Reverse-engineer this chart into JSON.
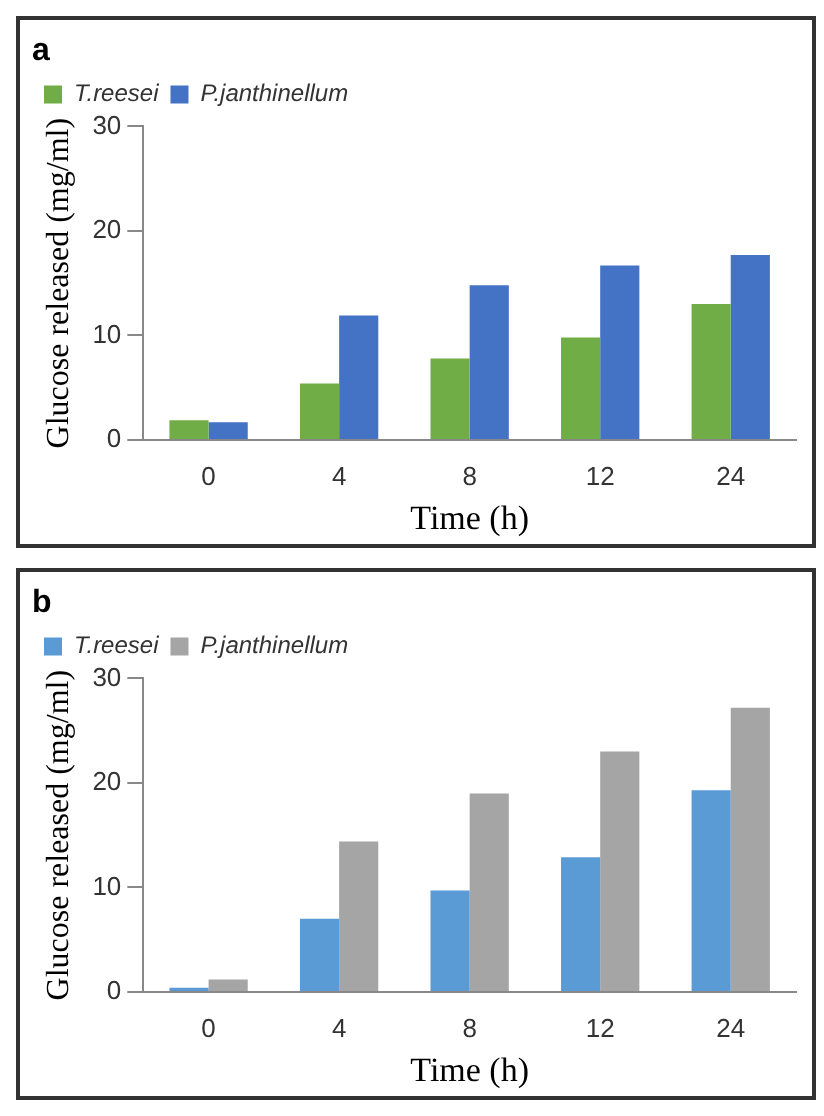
{
  "chart_data": [
    {
      "type": "bar",
      "title": "a",
      "xlabel": "Time (h)",
      "ylabel": "Glucose released (mg/ml)",
      "categories": [
        "0",
        "4",
        "8",
        "12",
        "24"
      ],
      "series": [
        {
          "name": "T.reesei",
          "color": "#70ad47",
          "values": [
            1.9,
            5.4,
            7.8,
            9.8,
            13.0
          ]
        },
        {
          "name": "P.janthinellum",
          "color": "#4472c4",
          "values": [
            1.7,
            11.9,
            14.8,
            16.7,
            17.7
          ]
        }
      ],
      "ylim": [
        0,
        30
      ],
      "yticks": [
        0,
        10,
        20,
        30
      ],
      "grid": false,
      "legend": "top left"
    },
    {
      "type": "bar",
      "title": "b",
      "xlabel": "Time (h)",
      "ylabel": "Glucose released (mg/ml)",
      "categories": [
        "0",
        "4",
        "8",
        "12",
        "24"
      ],
      "series": [
        {
          "name": "T.reesei",
          "color": "#5b9bd5",
          "values": [
            0.4,
            7.0,
            9.7,
            12.9,
            19.3
          ]
        },
        {
          "name": "P.janthinellum",
          "color": "#a5a5a5",
          "values": [
            1.2,
            14.4,
            19.0,
            23.0,
            27.2
          ]
        }
      ],
      "ylim": [
        0,
        30
      ],
      "yticks": [
        0,
        10,
        20,
        30
      ],
      "grid": false,
      "legend": "top left"
    }
  ]
}
